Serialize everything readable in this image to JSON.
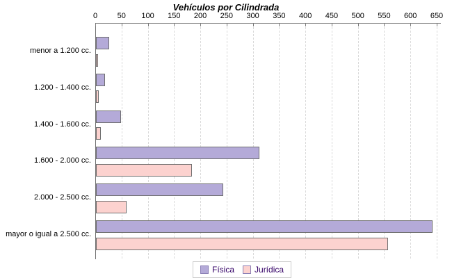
{
  "title": "Vehículos por Cilindrada",
  "chart_data": {
    "type": "bar",
    "orientation": "horizontal",
    "title": "Vehículos por Cilindrada",
    "categories": [
      "menor a 1.200 cc.",
      "1.200 - 1.400 cc.",
      "1.400 - 1.600 cc.",
      "1.600 - 2.000 cc.",
      "2.000 - 2.500 cc.",
      "mayor o igual a 2.500 cc."
    ],
    "series": [
      {
        "name": "Física",
        "color": "#b4aad8",
        "values": [
          22,
          15,
          45,
          308,
          240,
          638
        ]
      },
      {
        "name": "Jurídica",
        "color": "#fcd2cf",
        "values": [
          1,
          3,
          6,
          180,
          55,
          553
        ]
      }
    ],
    "xlim": [
      0,
      650
    ],
    "x_ticks": [
      0,
      50,
      100,
      150,
      200,
      250,
      300,
      350,
      400,
      450,
      500,
      550,
      600,
      650
    ],
    "grid": "vertical-dashed",
    "legend_position": "bottom"
  },
  "colors": {
    "bar_border": "#6e6e6e",
    "grid": "#d9d9d9",
    "axis": "#7a7a7a",
    "legend_text": "#330066",
    "title_text": "#000000",
    "background": "#ffffff"
  }
}
